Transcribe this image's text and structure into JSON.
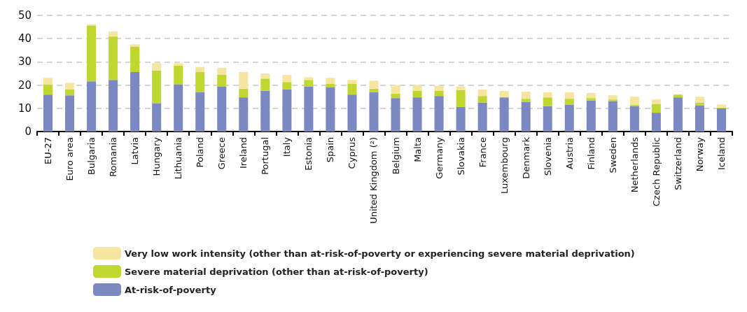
{
  "chart_data": {
    "type": "bar",
    "stacked": true,
    "categories": [
      "EU-27",
      "Euro area",
      "Bulgaria",
      "Romania",
      "Latvia",
      "Hungary",
      "Lithuania",
      "Poland",
      "Greece",
      "Ireland",
      "Portugal",
      "Italy",
      "Estonia",
      "Spain",
      "Cyprus",
      "United Kingdom (²)",
      "Belgium",
      "Malta",
      "Germany",
      "Slovakia",
      "France",
      "Luxembourg",
      "Denmark",
      "Slovenia",
      "Austria",
      "Finland",
      "Sweden",
      "Netherlands",
      "Czech Republic",
      "Switzerland",
      "Norway",
      "Iceland"
    ],
    "series": [
      {
        "name": "At-risk-of-poverty",
        "color": "#7b88c2",
        "values": [
          15.9,
          15.6,
          21.6,
          22.2,
          25.6,
          12.2,
          20.3,
          16.9,
          19.4,
          14.7,
          17.5,
          18.1,
          19.4,
          19.1,
          15.9,
          16.9,
          14.4,
          14.7,
          15.3,
          10.6,
          12.5,
          14.7,
          12.8,
          10.9,
          11.6,
          13.4,
          13.1,
          10.9,
          8.1,
          14.7,
          11.3,
          10.0
        ]
      },
      {
        "name": "Severe material deprivation (other than at-risk-of-poverty)",
        "color": "#c0d72f",
        "values": [
          4.4,
          2.5,
          24.0,
          18.7,
          11.0,
          14.1,
          8.1,
          8.7,
          5.0,
          3.7,
          5.3,
          3.2,
          2.8,
          1.5,
          4.7,
          1.5,
          1.9,
          2.8,
          2.2,
          7.2,
          2.8,
          0,
          1.3,
          3.8,
          2.5,
          1.0,
          0.7,
          0.7,
          3.8,
          1.2,
          1.2,
          0.3
        ]
      },
      {
        "name": "Very low work intensity (other than at-risk-of-poverty or experiencing severe material deprivation)",
        "color": "#f5e59e",
        "values": [
          2.8,
          2.8,
          0.6,
          2.2,
          0.9,
          3.1,
          1.0,
          2.2,
          3.1,
          7.2,
          2.2,
          3.1,
          1.2,
          2.5,
          1.6,
          3.5,
          3.7,
          2.5,
          2.2,
          1.6,
          2.8,
          2.8,
          3.1,
          2.2,
          2.8,
          2.2,
          1.8,
          3.4,
          1.9,
          0,
          2.5,
          1.3
        ]
      }
    ],
    "ylim": [
      0,
      50
    ],
    "yticks": [
      0,
      10,
      20,
      30,
      40,
      50
    ],
    "grid": "y",
    "legend": "bottom left"
  }
}
